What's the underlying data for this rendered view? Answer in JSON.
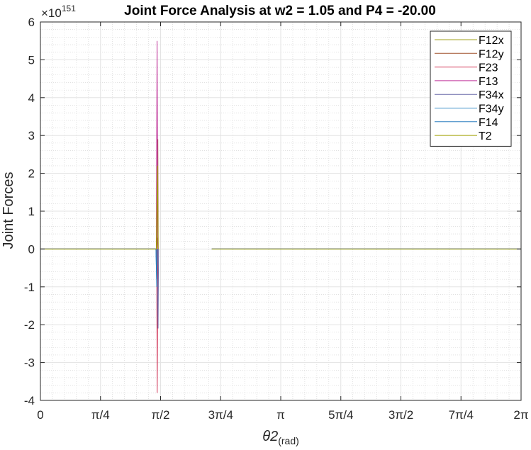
{
  "chart_data": {
    "type": "line",
    "title": "Joint Force Analysis at w2 = 1.05 and P4 = -20.00",
    "xlabel_main": "θ2",
    "xlabel_sub": "(rad)",
    "ylabel": "Joint Forces",
    "exponent_base": "×10",
    "exponent_power": "151",
    "xlim": [
      0,
      6.2832
    ],
    "ylim": [
      -4,
      6
    ],
    "grid": true,
    "minor_grid": true,
    "legend_position": "top-right",
    "x_ticks": [
      {
        "value": 0,
        "label": "0"
      },
      {
        "value": 0.7854,
        "label": "π/4"
      },
      {
        "value": 1.5708,
        "label": "π/2"
      },
      {
        "value": 2.3562,
        "label": "3π/4"
      },
      {
        "value": 3.1416,
        "label": "π"
      },
      {
        "value": 3.927,
        "label": "5π/4"
      },
      {
        "value": 4.7124,
        "label": "3π/2"
      },
      {
        "value": 5.4978,
        "label": "7π/4"
      },
      {
        "value": 6.2832,
        "label": "2π"
      }
    ],
    "y_ticks": [
      {
        "value": 6,
        "label": "6"
      },
      {
        "value": 5,
        "label": "5"
      },
      {
        "value": 4,
        "label": "4"
      },
      {
        "value": 3,
        "label": "3"
      },
      {
        "value": 2,
        "label": "2"
      },
      {
        "value": 1,
        "label": "1"
      },
      {
        "value": 0,
        "label": "0"
      },
      {
        "value": -1,
        "label": "-1"
      },
      {
        "value": -2,
        "label": "-2"
      },
      {
        "value": -3,
        "label": "-3"
      },
      {
        "value": -4,
        "label": "-4"
      }
    ],
    "series": [
      {
        "name": "F12x",
        "color": "#A2A21C",
        "segments": [
          [
            [
              0,
              0
            ],
            [
              1.52,
              0
            ],
            [
              1.53,
              0.3
            ],
            [
              1.54,
              0
            ]
          ],
          [
            [
              2.24,
              0
            ],
            [
              6.2832,
              0
            ]
          ]
        ]
      },
      {
        "name": "F12y",
        "color": "#A0522D",
        "segments": [
          [
            [
              0,
              0
            ],
            [
              1.52,
              0
            ],
            [
              1.535,
              2.9
            ],
            [
              1.54,
              0
            ]
          ],
          [
            [
              2.24,
              0
            ],
            [
              6.2832,
              0
            ]
          ]
        ]
      },
      {
        "name": "F23",
        "color": "#D2385A",
        "segments": [
          [
            [
              0,
              0
            ],
            [
              1.52,
              0
            ],
            [
              1.527,
              -3.8
            ],
            [
              1.535,
              0
            ]
          ],
          [
            [
              2.24,
              0
            ],
            [
              6.2832,
              0
            ]
          ]
        ]
      },
      {
        "name": "F13",
        "color": "#C0339A",
        "segments": [
          [
            [
              0,
              0
            ],
            [
              1.515,
              0
            ],
            [
              1.525,
              5.5
            ],
            [
              1.535,
              0
            ]
          ],
          [
            [
              2.24,
              0
            ],
            [
              6.2832,
              0
            ]
          ]
        ]
      },
      {
        "name": "F34x",
        "color": "#6A6AA8",
        "segments": [
          [
            [
              0,
              0
            ],
            [
              1.52,
              0
            ],
            [
              1.538,
              -2.1
            ],
            [
              1.545,
              0
            ]
          ],
          [
            [
              2.24,
              0
            ],
            [
              6.2832,
              0
            ]
          ]
        ]
      },
      {
        "name": "F34y",
        "color": "#3A8FC8",
        "segments": [
          [
            [
              0,
              0
            ],
            [
              1.51,
              0
            ],
            [
              1.52,
              -1.0
            ],
            [
              1.53,
              0
            ]
          ],
          [
            [
              2.24,
              0
            ],
            [
              6.2832,
              0
            ]
          ]
        ]
      },
      {
        "name": "F14",
        "color": "#2B7FBF",
        "segments": [
          [
            [
              0,
              0
            ],
            [
              1.51,
              0
            ],
            [
              1.52,
              -0.8
            ],
            [
              1.53,
              0
            ]
          ],
          [
            [
              2.24,
              0
            ],
            [
              6.2832,
              0
            ]
          ]
        ]
      },
      {
        "name": "T2",
        "color": "#A0A000",
        "segments": [
          [
            [
              0,
              0
            ],
            [
              1.515,
              0
            ],
            [
              1.53,
              2.2
            ],
            [
              1.54,
              0
            ]
          ],
          [
            [
              2.24,
              0
            ],
            [
              6.2832,
              0
            ]
          ]
        ]
      }
    ]
  }
}
